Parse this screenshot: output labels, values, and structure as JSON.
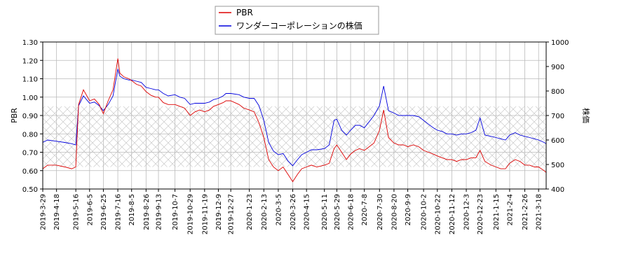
{
  "chart_data": {
    "type": "line",
    "title": "",
    "xlabel": "",
    "ylabel_left": "PBR",
    "ylabel_right": "株価",
    "ylim_left": [
      0.5,
      1.3
    ],
    "yticks_left": [
      "0.50",
      "0.60",
      "0.70",
      "0.80",
      "0.90",
      "1.00",
      "1.10",
      "1.20",
      "1.30"
    ],
    "ylim_right": [
      400,
      1000
    ],
    "yticks_right": [
      "400",
      "500",
      "600",
      "700",
      "800",
      "900",
      "1000"
    ],
    "xlim": [
      "2019-03-29",
      "2021-03-29"
    ],
    "xticks": [
      "2019-3-29",
      "2019-4-18",
      "2019-5-16",
      "2019-6-5",
      "2019-6-25",
      "2019-7-16",
      "2019-8-5",
      "2019-8-26",
      "2019-9-13",
      "2019-10-7",
      "2019-10-29",
      "2019-11-19",
      "2019-12-9",
      "2019-12-27",
      "2020-1-23",
      "2020-2-13",
      "2020-3-5",
      "2020-3-26",
      "2020-4-15",
      "2020-5-11",
      "2020-5-29",
      "2020-6-18",
      "2020-7-8",
      "2020-7-30",
      "2020-8-20",
      "2020-9-9",
      "2020-10-2",
      "2020-10-22",
      "2020-11-12",
      "2020-12-3",
      "2020-12-23",
      "2021-1-15",
      "2021-2-4",
      "2021-2-26",
      "2021-3-18"
    ],
    "grid": true,
    "legend_position": "top-center",
    "hatched_band_left": [
      0.62,
      0.95
    ],
    "series": [
      {
        "name": "PBR",
        "color": "#dd0000",
        "axis": "left",
        "x": [
          "2019-03-29",
          "2019-04-05",
          "2019-04-18",
          "2019-04-30",
          "2019-05-10",
          "2019-05-16",
          "2019-05-20",
          "2019-05-27",
          "2019-06-05",
          "2019-06-12",
          "2019-06-19",
          "2019-06-25",
          "2019-07-02",
          "2019-07-09",
          "2019-07-16",
          "2019-07-19",
          "2019-07-25",
          "2019-08-01",
          "2019-08-05",
          "2019-08-12",
          "2019-08-19",
          "2019-08-26",
          "2019-09-02",
          "2019-09-09",
          "2019-09-13",
          "2019-09-20",
          "2019-09-27",
          "2019-10-07",
          "2019-10-14",
          "2019-10-21",
          "2019-10-29",
          "2019-11-05",
          "2019-11-12",
          "2019-11-19",
          "2019-11-26",
          "2019-12-02",
          "2019-12-09",
          "2019-12-16",
          "2019-12-20",
          "2019-12-27",
          "2020-01-08",
          "2020-01-15",
          "2020-01-23",
          "2020-01-30",
          "2020-02-06",
          "2020-02-13",
          "2020-02-20",
          "2020-02-27",
          "2020-03-05",
          "2020-03-12",
          "2020-03-19",
          "2020-03-26",
          "2020-04-02",
          "2020-04-08",
          "2020-04-15",
          "2020-04-22",
          "2020-04-30",
          "2020-05-11",
          "2020-05-18",
          "2020-05-25",
          "2020-05-29",
          "2020-06-05",
          "2020-06-12",
          "2020-06-18",
          "2020-06-25",
          "2020-07-01",
          "2020-07-08",
          "2020-07-15",
          "2020-07-22",
          "2020-07-30",
          "2020-08-05",
          "2020-08-12",
          "2020-08-20",
          "2020-08-27",
          "2020-09-03",
          "2020-09-09",
          "2020-09-17",
          "2020-09-25",
          "2020-10-02",
          "2020-10-09",
          "2020-10-16",
          "2020-10-22",
          "2020-10-29",
          "2020-11-05",
          "2020-11-12",
          "2020-11-19",
          "2020-11-26",
          "2020-12-03",
          "2020-12-10",
          "2020-12-17",
          "2020-12-23",
          "2020-12-30",
          "2021-01-08",
          "2021-01-15",
          "2021-01-22",
          "2021-01-29",
          "2021-02-04",
          "2021-02-12",
          "2021-02-19",
          "2021-02-26",
          "2021-03-05",
          "2021-03-12",
          "2021-03-18",
          "2021-03-26",
          "2021-03-29"
        ],
        "values": [
          0.61,
          0.63,
          0.63,
          0.62,
          0.61,
          0.62,
          0.96,
          1.04,
          0.98,
          0.99,
          0.96,
          0.91,
          0.98,
          1.04,
          1.21,
          1.13,
          1.11,
          1.1,
          1.09,
          1.07,
          1.06,
          1.03,
          1.01,
          1.0,
          1.0,
          0.97,
          0.96,
          0.96,
          0.95,
          0.94,
          0.9,
          0.92,
          0.93,
          0.92,
          0.93,
          0.95,
          0.96,
          0.97,
          0.98,
          0.98,
          0.96,
          0.94,
          0.93,
          0.92,
          0.86,
          0.78,
          0.66,
          0.62,
          0.6,
          0.62,
          0.58,
          0.54,
          0.58,
          0.61,
          0.62,
          0.63,
          0.62,
          0.63,
          0.64,
          0.72,
          0.74,
          0.7,
          0.66,
          0.69,
          0.71,
          0.72,
          0.71,
          0.73,
          0.75,
          0.82,
          0.93,
          0.78,
          0.75,
          0.74,
          0.74,
          0.73,
          0.74,
          0.73,
          0.71,
          0.7,
          0.69,
          0.68,
          0.67,
          0.66,
          0.66,
          0.65,
          0.66,
          0.66,
          0.67,
          0.67,
          0.71,
          0.65,
          0.63,
          0.62,
          0.61,
          0.61,
          0.64,
          0.66,
          0.65,
          0.63,
          0.63,
          0.62,
          0.62,
          0.6,
          0.59
        ]
      },
      {
        "name": "ワンダーコーポレーションの株価",
        "color": "#0000dd",
        "axis": "right",
        "x": [
          "2019-03-29",
          "2019-04-05",
          "2019-04-18",
          "2019-04-30",
          "2019-05-10",
          "2019-05-16",
          "2019-05-20",
          "2019-05-27",
          "2019-06-05",
          "2019-06-12",
          "2019-06-19",
          "2019-06-25",
          "2019-07-02",
          "2019-07-09",
          "2019-07-16",
          "2019-07-19",
          "2019-07-25",
          "2019-08-01",
          "2019-08-05",
          "2019-08-12",
          "2019-08-19",
          "2019-08-26",
          "2019-09-02",
          "2019-09-09",
          "2019-09-13",
          "2019-09-20",
          "2019-09-27",
          "2019-10-07",
          "2019-10-14",
          "2019-10-21",
          "2019-10-29",
          "2019-11-05",
          "2019-11-12",
          "2019-11-19",
          "2019-11-26",
          "2019-12-02",
          "2019-12-09",
          "2019-12-16",
          "2019-12-20",
          "2019-12-27",
          "2020-01-08",
          "2020-01-15",
          "2020-01-23",
          "2020-01-30",
          "2020-02-06",
          "2020-02-13",
          "2020-02-20",
          "2020-02-27",
          "2020-03-05",
          "2020-03-12",
          "2020-03-19",
          "2020-03-26",
          "2020-04-02",
          "2020-04-08",
          "2020-04-15",
          "2020-04-22",
          "2020-04-30",
          "2020-05-11",
          "2020-05-18",
          "2020-05-25",
          "2020-05-29",
          "2020-06-05",
          "2020-06-12",
          "2020-06-18",
          "2020-06-25",
          "2020-07-01",
          "2020-07-08",
          "2020-07-15",
          "2020-07-22",
          "2020-07-30",
          "2020-08-05",
          "2020-08-12",
          "2020-08-20",
          "2020-08-27",
          "2020-09-03",
          "2020-09-09",
          "2020-09-17",
          "2020-09-25",
          "2020-10-02",
          "2020-10-09",
          "2020-10-16",
          "2020-10-22",
          "2020-10-29",
          "2020-11-05",
          "2020-11-12",
          "2020-11-19",
          "2020-11-26",
          "2020-12-03",
          "2020-12-10",
          "2020-12-17",
          "2020-12-23",
          "2020-12-30",
          "2021-01-08",
          "2021-01-15",
          "2021-01-22",
          "2021-01-29",
          "2021-02-04",
          "2021-02-12",
          "2021-02-19",
          "2021-02-26",
          "2021-03-05",
          "2021-03-12",
          "2021-03-18",
          "2021-03-26",
          "2021-03-29"
        ],
        "values": [
          590,
          600,
          595,
          590,
          585,
          580,
          740,
          780,
          750,
          755,
          740,
          720,
          745,
          780,
          890,
          860,
          850,
          845,
          845,
          840,
          835,
          815,
          810,
          805,
          805,
          790,
          780,
          785,
          775,
          770,
          745,
          750,
          750,
          750,
          755,
          765,
          770,
          780,
          790,
          790,
          785,
          775,
          770,
          770,
          740,
          680,
          590,
          555,
          540,
          545,
          515,
          495,
          520,
          540,
          550,
          560,
          560,
          565,
          580,
          680,
          685,
          640,
          620,
          640,
          660,
          660,
          650,
          675,
          700,
          740,
          820,
          720,
          710,
          700,
          700,
          700,
          700,
          695,
          680,
          665,
          650,
          640,
          635,
          625,
          625,
          620,
          625,
          625,
          630,
          640,
          690,
          620,
          615,
          610,
          605,
          600,
          620,
          630,
          620,
          615,
          610,
          605,
          600,
          590,
          585
        ]
      }
    ]
  }
}
